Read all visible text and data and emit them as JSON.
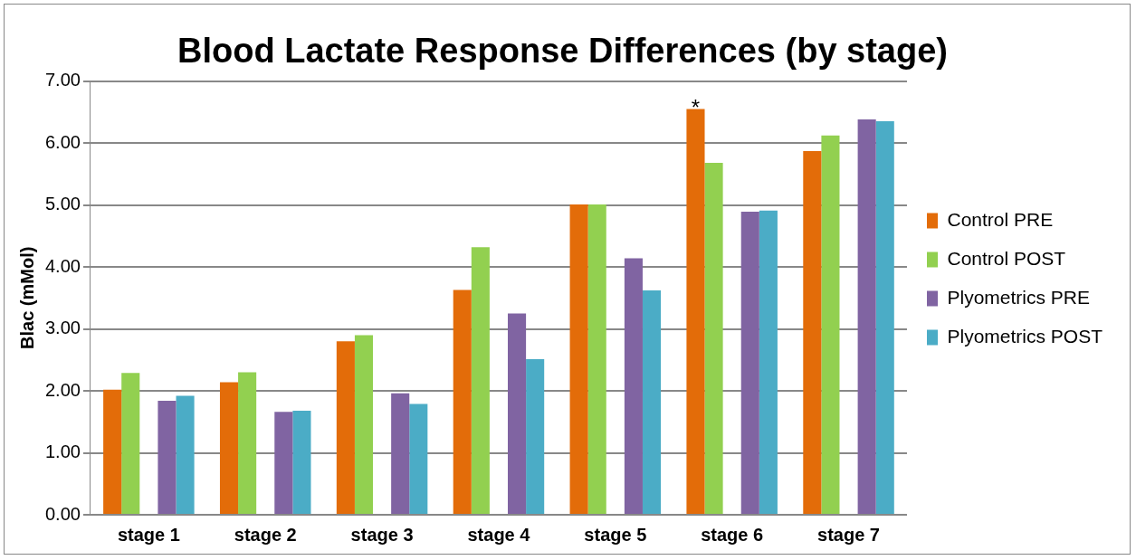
{
  "chart_data": {
    "type": "bar",
    "title": "Blood Lactate Response Differences (by stage)",
    "ylabel": "Blac (mMol)",
    "categories": [
      "stage 1",
      "stage 2",
      "stage 3",
      "stage 4",
      "stage 5",
      "stage 6",
      "stage 7"
    ],
    "series": [
      {
        "name": "Control PRE",
        "color": "#e36c09",
        "values": [
          2.02,
          2.14,
          2.8,
          3.63,
          5.01,
          6.55,
          5.87
        ]
      },
      {
        "name": "Control POST",
        "color": "#92d050",
        "values": [
          2.29,
          2.3,
          2.9,
          4.32,
          5.01,
          5.68,
          6.12
        ]
      },
      {
        "name": "Plyometrics PRE",
        "color": "#8064a2",
        "values": [
          1.84,
          1.66,
          1.96,
          3.25,
          4.14,
          4.89,
          6.38
        ]
      },
      {
        "name": "Plyometrics POST",
        "color": "#4bacc6",
        "values": [
          1.92,
          1.68,
          1.79,
          2.51,
          3.62,
          4.91,
          6.35
        ]
      }
    ],
    "ylim": [
      0,
      7
    ],
    "yticks": [
      {
        "value": 0,
        "label": "0.00"
      },
      {
        "value": 1,
        "label": "1.00"
      },
      {
        "value": 2,
        "label": "2.00"
      },
      {
        "value": 3,
        "label": "3.00"
      },
      {
        "value": 4,
        "label": "4.00"
      },
      {
        "value": 5,
        "label": "5.00"
      },
      {
        "value": 6,
        "label": "6.00"
      },
      {
        "value": 7,
        "label": "7.00"
      }
    ],
    "grid": "y",
    "legend": "right",
    "annotations": [
      "*"
    ]
  }
}
